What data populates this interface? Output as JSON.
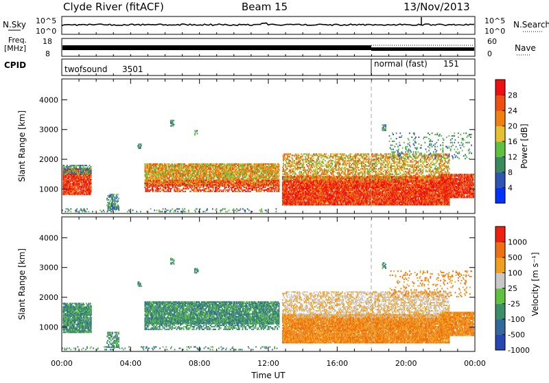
{
  "header": {
    "station": "Clyde River (fitACF)",
    "beam": "Beam 15",
    "date": "13/Nov/2013"
  },
  "strips": {
    "nsky_label": "N.Sky",
    "nsky_ticks": [
      "10^5",
      "10^0"
    ],
    "nsearch_label": "N.Search",
    "nsearch_ticks": [
      "10^5",
      "10^0"
    ],
    "freq_label_1": "Freq.",
    "freq_label_2": "[MHz]",
    "freq_ticks": [
      "18",
      "8"
    ],
    "nave_label": "Nave",
    "nave_ticks": [
      "60",
      "0"
    ],
    "cpid_label": "CPID",
    "cpid_segments": [
      {
        "name": "twofsound",
        "id": "3501",
        "start_hour": 0,
        "end_hour": 18.0
      },
      {
        "name": "normal (fast)",
        "id": "151",
        "start_hour": 18.0,
        "end_hour": 24
      }
    ]
  },
  "chart_data": [
    {
      "type": "heatmap",
      "title": "",
      "xlabel": "Time UT",
      "ylabel": "Slant Range [km]",
      "x_ticks": [
        "00:00",
        "04:00",
        "08:00",
        "12:00",
        "16:00",
        "20:00",
        "00:00"
      ],
      "xlim_hours": [
        0,
        24
      ],
      "y_ticks": [
        1000,
        2000,
        3000,
        4000
      ],
      "ylim_km": [
        180,
        4700
      ],
      "colorbar": {
        "label": "Power [dB]",
        "ticks": [
          "28",
          "24",
          "20",
          "16",
          "12",
          "8",
          "4"
        ],
        "colors": [
          "#0033ff",
          "#2f55b4",
          "#3a8a5f",
          "#5fc040",
          "#e5c030",
          "#f08010",
          "#ef5010",
          "#ee1010"
        ]
      }
    },
    {
      "type": "heatmap",
      "title": "",
      "xlabel": "Time UT",
      "ylabel": "Slant Range [km]",
      "x_ticks": [
        "00:00",
        "04:00",
        "08:00",
        "12:00",
        "16:00",
        "20:00",
        "00:00"
      ],
      "xlim_hours": [
        0,
        24
      ],
      "y_ticks": [
        1000,
        2000,
        3000,
        4000
      ],
      "ylim_km": [
        180,
        4700
      ],
      "colorbar": {
        "label": "Velocity [m s⁻¹]",
        "ticks": [
          "1000",
          "500",
          "100",
          "25",
          "-25",
          "-100",
          "-500",
          "-1000"
        ],
        "colors": [
          "#2646b3",
          "#33689f",
          "#3c8d6a",
          "#60c040",
          "#c8c8c8",
          "#f0a020",
          "#ef7010",
          "#ee2010"
        ]
      }
    }
  ]
}
